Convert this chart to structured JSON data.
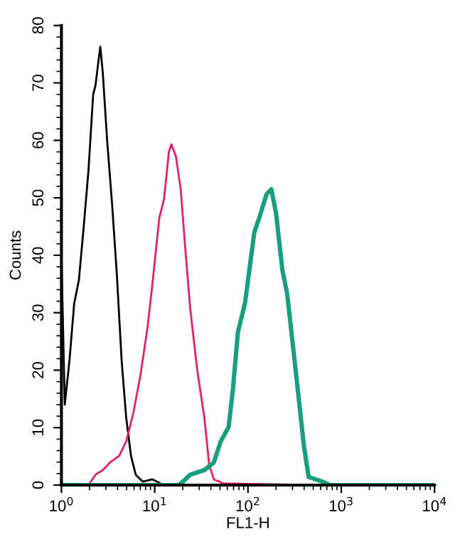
{
  "chart_data": {
    "type": "line",
    "xlabel": "FL1-H",
    "ylabel": "Counts",
    "log": "x",
    "xlim": [
      1,
      10000
    ],
    "ylim": [
      0,
      80
    ],
    "xticks": [
      {
        "value": 1,
        "label": "10$^{0}$"
      },
      {
        "value": 10,
        "label": "10$^{1}$"
      },
      {
        "value": 100,
        "label": "10$^{2}$"
      },
      {
        "value": 1000,
        "label": "10$^{3}$"
      },
      {
        "value": 10000,
        "label": "10$^{4}$"
      }
    ],
    "yticks": [
      0,
      10,
      20,
      30,
      40,
      50,
      60,
      70,
      80
    ],
    "grid": false,
    "marker": "none",
    "line_style": "solid",
    "series": [
      {
        "color": "#000000",
        "x": [
          1.0,
          1.086,
          1.22,
          1.37,
          1.54,
          1.73,
          1.95,
          2.19,
          2.32,
          2.46,
          2.61,
          2.77,
          3.1,
          3.49,
          3.93,
          4.42,
          4.95,
          5.57,
          6.26,
          7.46,
          9.44,
          11.9,
          19.0
        ],
        "values": [
          40,
          14,
          21.7,
          31.6,
          35.7,
          44.8,
          54.8,
          68,
          69.6,
          73,
          76.3,
          72,
          59.7,
          49,
          36.6,
          21.7,
          11.7,
          5.1,
          1.8,
          0.6,
          1,
          0.2,
          0
        ]
      },
      {
        "color": "#e0206a",
        "x": [
          1.95,
          2.32,
          2.77,
          3.3,
          4.16,
          4.95,
          5.91,
          7.05,
          8.39,
          9.44,
          11.2,
          12.6,
          14.2,
          15.1,
          16.9,
          19.0,
          21.4,
          24.0,
          28.6,
          34.1,
          38.4,
          43.1,
          54.4,
          562
        ],
        "values": [
          0,
          1.8,
          2.6,
          3.9,
          5.1,
          7.6,
          12.6,
          19.2,
          27.5,
          34.9,
          46.5,
          49.8,
          58,
          59.3,
          57.2,
          51.5,
          40.7,
          30.8,
          20,
          11.7,
          3.5,
          1,
          0.3,
          0
        ]
      },
      {
        "color": "#1a9e80",
        "x": [
          1,
          18,
          20,
          24,
          34,
          43,
          51,
          62,
          69,
          78,
          93,
          105,
          117,
          132,
          158,
          178,
          200,
          234,
          263,
          316,
          355,
          398,
          447,
          631,
          759,
          10000
        ],
        "values": [
          0,
          0,
          0.6,
          1.8,
          2.6,
          3.9,
          7.6,
          10.1,
          16.7,
          26.6,
          31.7,
          38.2,
          44,
          46.5,
          50.6,
          51.5,
          47.3,
          37.4,
          33.3,
          21.7,
          14.2,
          6.8,
          1.4,
          0.6,
          0,
          0
        ]
      }
    ]
  }
}
